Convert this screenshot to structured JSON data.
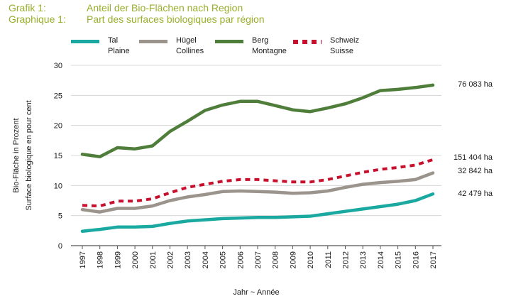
{
  "header": {
    "label_de": "Grafik 1:",
    "label_fr": "Graphique 1:",
    "title_de": "Anteil der Bio-Flächen nach Region",
    "title_fr": "Part des surfaces biologiques par région"
  },
  "legend": [
    {
      "line1": "Tal",
      "line2": "Plaine",
      "color": "#1aa9a0",
      "style": "solid"
    },
    {
      "line1": "Hügel",
      "line2": "Collines",
      "color": "#9b948c",
      "style": "solid"
    },
    {
      "line1": "Berg",
      "line2": "Montagne",
      "color": "#4f7d3a",
      "style": "solid"
    },
    {
      "line1": "Schweiz",
      "line2": "Suisse",
      "color": "#c8102e",
      "style": "dashed"
    }
  ],
  "chart_data": {
    "type": "line",
    "x": [
      "1997",
      "1998",
      "1999",
      "2000",
      "2001",
      "2002",
      "2003",
      "2004",
      "2005",
      "2006",
      "2007",
      "2008",
      "2009",
      "2010",
      "2011",
      "2012",
      "2013",
      "2014",
      "2015",
      "2016",
      "2017"
    ],
    "xlabel": "Jahr  ~  Année",
    "ylabel_line1": "Bio-Fläche in Prozent",
    "ylabel_line2": "Surface biologique en pour cent",
    "ylim": [
      0,
      30
    ],
    "yticks": [
      0,
      5,
      10,
      15,
      20,
      25,
      30
    ],
    "grid": "horizontal",
    "series": [
      {
        "key": "tal",
        "name": "Tal / Plaine",
        "color": "#1aa9a0",
        "dashed": false,
        "values": [
          2.4,
          2.7,
          3.1,
          3.1,
          3.2,
          3.7,
          4.1,
          4.3,
          4.5,
          4.6,
          4.7,
          4.7,
          4.8,
          4.9,
          5.3,
          5.7,
          6.1,
          6.5,
          6.9,
          7.5,
          8.6
        ],
        "end_label": "42 479 ha"
      },
      {
        "key": "huegel",
        "name": "Hügel / Collines",
        "color": "#9b948c",
        "dashed": false,
        "values": [
          6.0,
          5.6,
          6.2,
          6.2,
          6.6,
          7.5,
          8.1,
          8.5,
          9.0,
          9.1,
          9.0,
          8.9,
          8.7,
          8.8,
          9.1,
          9.7,
          10.2,
          10.5,
          10.7,
          11.0,
          12.1
        ],
        "end_label": "32 842 ha"
      },
      {
        "key": "berg",
        "name": "Berg / Montagne",
        "color": "#4f7d3a",
        "dashed": false,
        "values": [
          15.2,
          14.8,
          16.3,
          16.1,
          16.6,
          19.0,
          20.7,
          22.5,
          23.4,
          24.0,
          24.0,
          23.3,
          22.6,
          22.3,
          22.9,
          23.6,
          24.6,
          25.8,
          26.0,
          26.3,
          26.7
        ],
        "end_label": "76 083 ha"
      },
      {
        "key": "schweiz",
        "name": "Schweiz / Suisse",
        "color": "#c8102e",
        "dashed": true,
        "values": [
          6.7,
          6.6,
          7.4,
          7.4,
          7.8,
          8.8,
          9.7,
          10.2,
          10.7,
          11.0,
          11.0,
          10.8,
          10.6,
          10.6,
          11.0,
          11.6,
          12.2,
          12.7,
          13.0,
          13.4,
          14.3
        ],
        "end_label": "151 404 ha"
      }
    ]
  }
}
